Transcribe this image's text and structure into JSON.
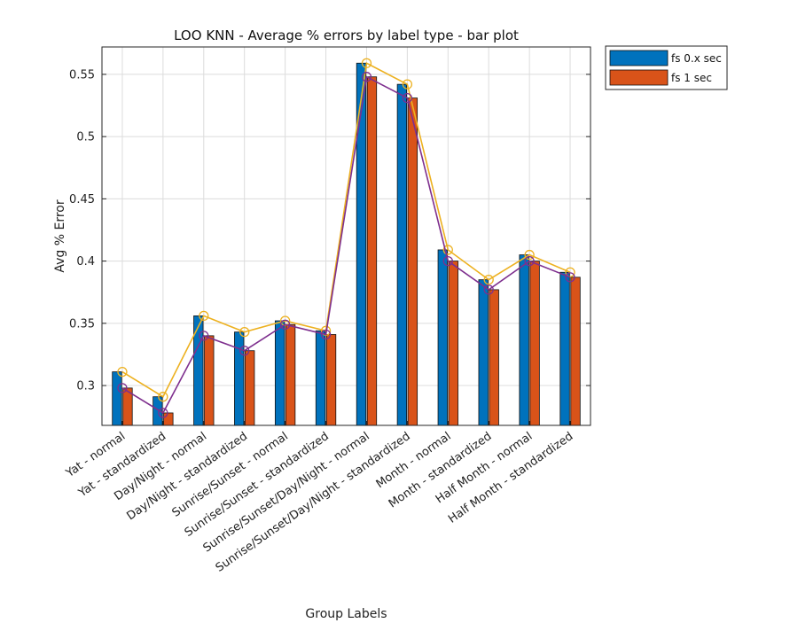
{
  "chart_data": {
    "type": "bar",
    "title": "LOO KNN - Average % errors by label type - bar plot",
    "xlabel": "Group Labels",
    "ylabel": "Avg % Error",
    "ylim": [
      0.268,
      0.572
    ],
    "yticks": [
      0.3,
      0.35,
      0.4,
      0.45,
      0.5,
      0.55
    ],
    "grid": true,
    "legend_position": "top-right",
    "categories": [
      "Yat - normal",
      "Yat - standardized",
      "Day/Night - normal",
      "Day/Night - standardized",
      "Sunrise/Sunset - normal",
      "Sunrise/Sunset - standardized",
      "Sunrise/Sunset/Day/Night - normal",
      "Sunrise/Sunset/Day/Night - standardized",
      "Month - normal",
      "Month - standardized",
      "Half Month - normal",
      "Half Month - standardized"
    ],
    "series": [
      {
        "name": "fs 0.x sec",
        "color": "#0072BD",
        "values": [
          0.311,
          0.291,
          0.356,
          0.343,
          0.352,
          0.344,
          0.559,
          0.542,
          0.409,
          0.385,
          0.405,
          0.391
        ]
      },
      {
        "name": "fs 1 sec",
        "color": "#D95319",
        "values": [
          0.298,
          0.278,
          0.34,
          0.328,
          0.349,
          0.341,
          0.548,
          0.531,
          0.4,
          0.377,
          0.4,
          0.387
        ]
      }
    ],
    "lines": [
      {
        "color": "#EDB120",
        "marker": "circle",
        "values": [
          0.311,
          0.291,
          0.356,
          0.343,
          0.352,
          0.344,
          0.559,
          0.542,
          0.409,
          0.385,
          0.405,
          0.391
        ]
      },
      {
        "color": "#7E2F8E",
        "marker": "circle",
        "values": [
          0.298,
          0.278,
          0.34,
          0.328,
          0.349,
          0.341,
          0.548,
          0.531,
          0.4,
          0.377,
          0.4,
          0.387
        ]
      }
    ]
  }
}
